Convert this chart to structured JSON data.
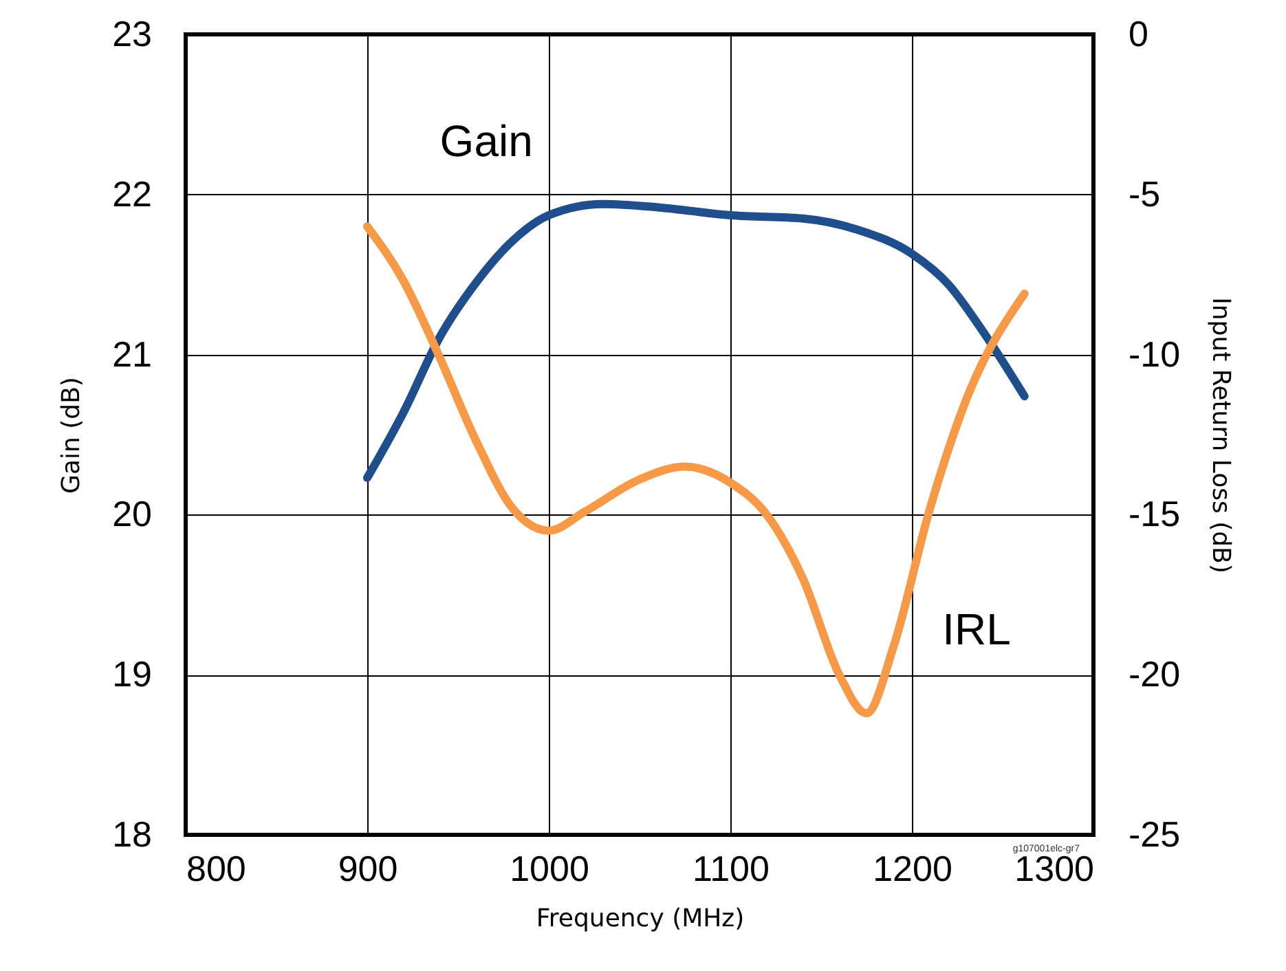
{
  "chart_data": {
    "type": "line",
    "xlabel": "Frequency (MHz)",
    "ylabel": "Gain (dB)",
    "y2label": "Input Return Loss (dB)",
    "xlim": [
      800,
      1300
    ],
    "xticks": [
      800,
      900,
      1000,
      1100,
      1200,
      1300
    ],
    "ylim": [
      18,
      23
    ],
    "yticks": [
      18,
      19,
      20,
      21,
      22,
      23
    ],
    "y2lim": [
      -25,
      0
    ],
    "y2ticks": [
      -25,
      -20,
      -15,
      -10,
      -5,
      0
    ],
    "grid": true,
    "legend": false,
    "marker": "none",
    "line_style": "solid",
    "annotations": [
      "g107001elc-gr7"
    ],
    "series": [
      {
        "name": "Gain",
        "color": "#1f4e8c",
        "x": [
          900,
          920,
          940,
          960,
          980,
          1000,
          1030,
          1060,
          1100,
          1140,
          1170,
          1200,
          1220,
          1240,
          1262
        ],
        "values": [
          20.23,
          20.64,
          21.11,
          21.45,
          21.71,
          21.87,
          21.94,
          21.92,
          21.87,
          21.85,
          21.78,
          21.63,
          21.44,
          21.13,
          20.74
        ]
      },
      {
        "name": "IRL",
        "color": "#f79a48",
        "axis": "y2",
        "x": [
          900,
          920,
          940,
          960,
          980,
          1000,
          1020,
          1050,
          1075,
          1100,
          1120,
          1140,
          1160,
          1175,
          1190,
          1210,
          1230,
          1262
        ],
        "values": [
          -6.0,
          -7.7,
          -10.1,
          -12.7,
          -14.8,
          -15.5,
          -14.9,
          -13.9,
          -13.5,
          -14.0,
          -15.0,
          -17.0,
          -20.0,
          -21.2,
          -19.1,
          -14.8,
          -11.4,
          -8.1
        ]
      }
    ]
  }
}
